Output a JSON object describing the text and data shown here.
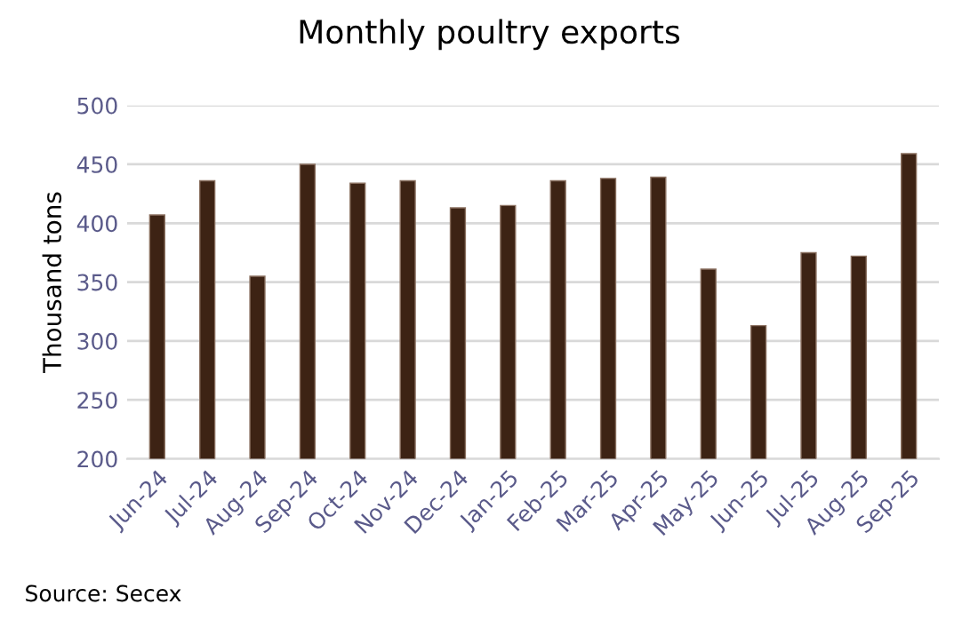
{
  "chart_data": {
    "type": "bar",
    "title": "Monthly poultry exports",
    "ylabel": "Thousand tons",
    "categories": [
      "Jun-24",
      "Jul-24",
      "Aug-24",
      "Sep-24",
      "Oct-24",
      "Nov-24",
      "Dec-24",
      "Jan-25",
      "Feb-25",
      "Mar-25",
      "Apr-25",
      "May-25",
      "Jun-25",
      "Jul-25",
      "Aug-25",
      "Sep-25"
    ],
    "values": [
      407,
      436,
      355,
      450,
      434,
      436,
      413,
      415,
      436,
      438,
      439,
      361,
      313,
      375,
      372,
      459
    ],
    "color": "#3d2314",
    "ylim": [
      200,
      500
    ],
    "yticks": [
      200,
      250,
      300,
      350,
      400,
      450,
      500
    ],
    "grid": "y",
    "annotations": [
      "Source: Secex"
    ]
  }
}
